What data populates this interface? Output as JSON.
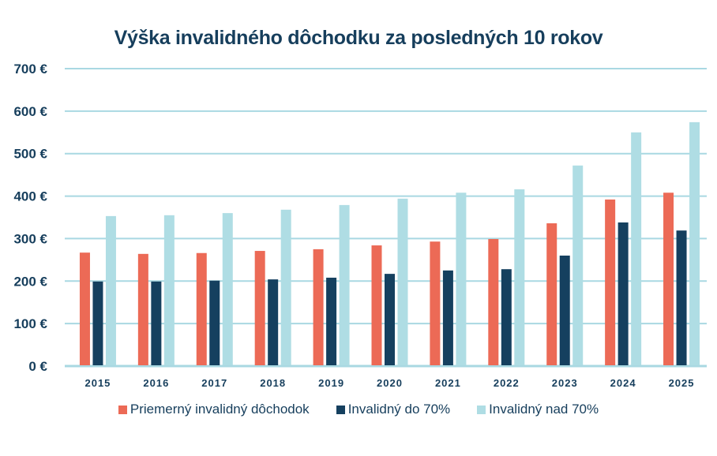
{
  "chart_data": {
    "type": "bar",
    "title": "Výška invalidného dôchodku za posledných 10 rokov",
    "xlabel": "",
    "ylabel": "",
    "ylim": [
      0,
      700
    ],
    "yticks": [
      0,
      100,
      200,
      300,
      400,
      500,
      600,
      700
    ],
    "ytick_labels": [
      "0 €",
      "100 €",
      "200 €",
      "300 €",
      "400 €",
      "500 €",
      "600 €",
      "700 €"
    ],
    "grid": true,
    "legend_position": "bottom",
    "categories": [
      "2015",
      "2016",
      "2017",
      "2018",
      "2019",
      "2020",
      "2021",
      "2022",
      "2023",
      "2024",
      "2025"
    ],
    "series": [
      {
        "name": "Priemerný invalidný dôchodok",
        "color": "#ec6a56",
        "values": [
          267,
          264,
          266,
          271,
          275,
          284,
          293,
          299,
          336,
          392,
          408
        ]
      },
      {
        "name": "Invalidný do 70%",
        "color": "#15405f",
        "values": [
          199,
          199,
          201,
          204,
          208,
          217,
          225,
          228,
          260,
          338,
          319
        ]
      },
      {
        "name": "Invalidný nad 70%",
        "color": "#afdde4",
        "values": [
          353,
          355,
          360,
          368,
          379,
          394,
          408,
          416,
          472,
          550,
          574
        ]
      }
    ],
    "colors": {
      "grid": "#a9d8e2",
      "text": "#163e5c"
    }
  }
}
